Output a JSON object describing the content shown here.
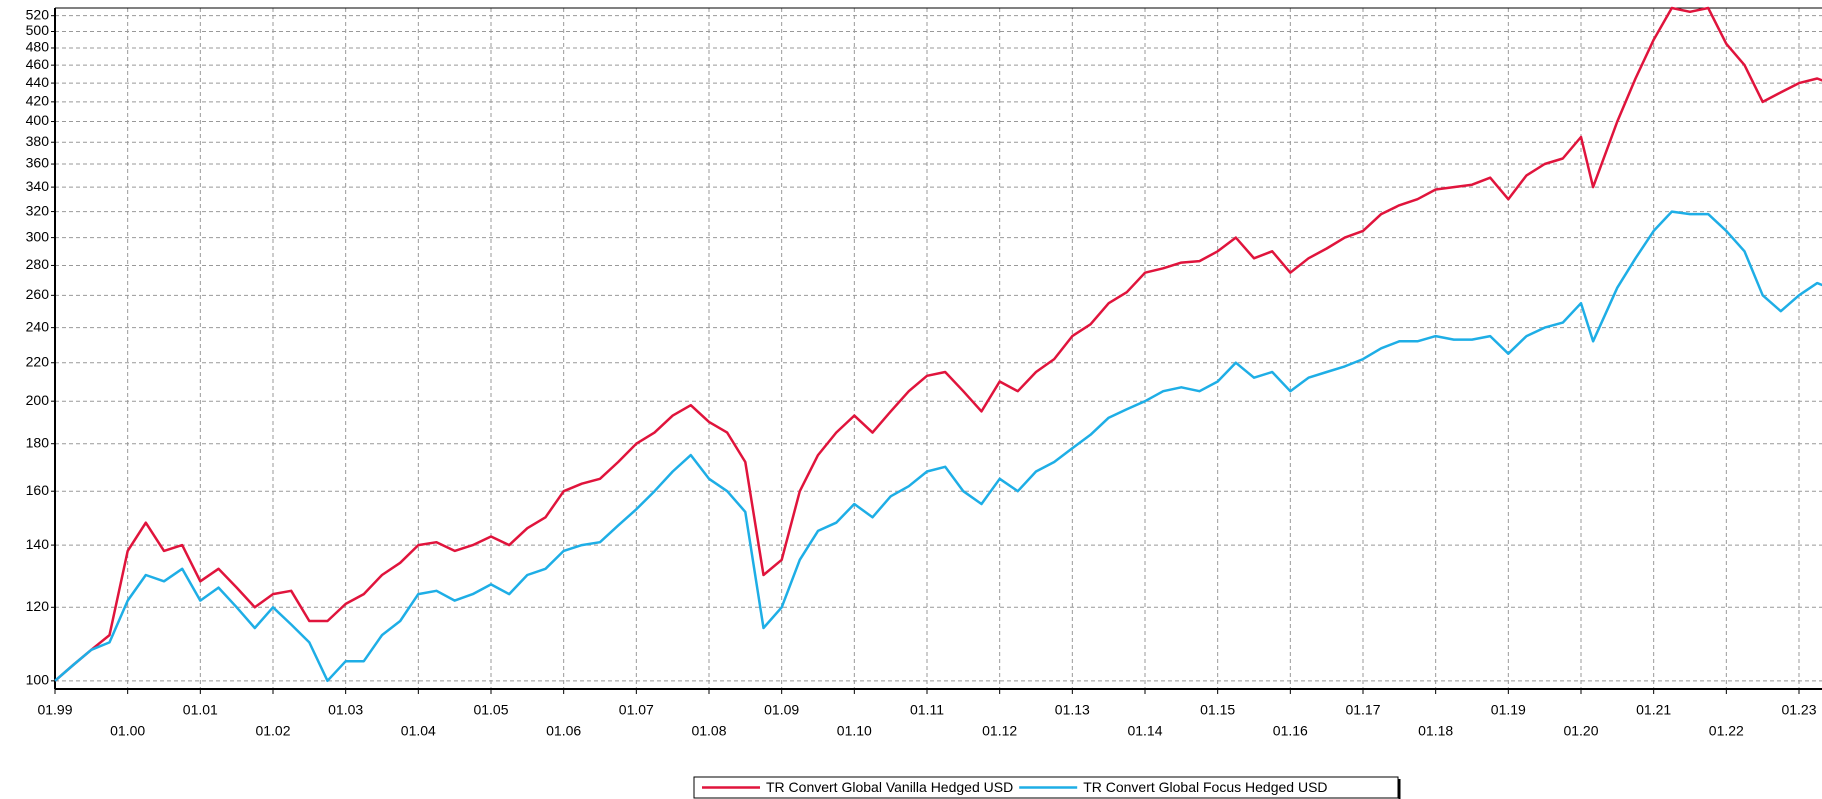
{
  "chart_data": {
    "type": "line",
    "log_scale": true,
    "grid": true,
    "legend": "bottom",
    "x": [
      "1999-01",
      "1999-04",
      "1999-07",
      "1999-10",
      "2000-01",
      "2000-04",
      "2000-07",
      "2000-10",
      "2001-01",
      "2001-04",
      "2001-07",
      "2001-10",
      "2002-01",
      "2002-04",
      "2002-07",
      "2002-10",
      "2003-01",
      "2003-04",
      "2003-07",
      "2003-10",
      "2004-01",
      "2004-04",
      "2004-07",
      "2004-10",
      "2005-01",
      "2005-04",
      "2005-07",
      "2005-10",
      "2006-01",
      "2006-04",
      "2006-07",
      "2006-10",
      "2007-01",
      "2007-04",
      "2007-07",
      "2007-10",
      "2008-01",
      "2008-04",
      "2008-07",
      "2008-10",
      "2009-01",
      "2009-04",
      "2009-07",
      "2009-10",
      "2010-01",
      "2010-04",
      "2010-07",
      "2010-10",
      "2011-01",
      "2011-04",
      "2011-07",
      "2011-10",
      "2012-01",
      "2012-04",
      "2012-07",
      "2012-10",
      "2013-01",
      "2013-04",
      "2013-07",
      "2013-10",
      "2014-01",
      "2014-04",
      "2014-07",
      "2014-10",
      "2015-01",
      "2015-04",
      "2015-07",
      "2015-10",
      "2016-01",
      "2016-04",
      "2016-07",
      "2016-10",
      "2017-01",
      "2017-04",
      "2017-07",
      "2017-10",
      "2018-01",
      "2018-04",
      "2018-07",
      "2018-10",
      "2019-01",
      "2019-04",
      "2019-07",
      "2019-10",
      "2020-01",
      "2020-03",
      "2020-07",
      "2020-10",
      "2021-01",
      "2021-04",
      "2021-07",
      "2021-10",
      "2022-01",
      "2022-04",
      "2022-07",
      "2022-10",
      "2023-01",
      "2023-04",
      "2023-06"
    ],
    "series": [
      {
        "name": "TR Convert Global Vanilla Hedged USD",
        "color": "#e0143c",
        "values": [
          100,
          104,
          108,
          112,
          138,
          148,
          138,
          140,
          128,
          132,
          126,
          120,
          124,
          125,
          116,
          116,
          121,
          124,
          130,
          134,
          140,
          141,
          138,
          140,
          143,
          140,
          146,
          150,
          160,
          163,
          165,
          172,
          180,
          185,
          193,
          198,
          190,
          185,
          172,
          130,
          135,
          160,
          175,
          185,
          193,
          185,
          195,
          205,
          213,
          215,
          205,
          195,
          210,
          205,
          215,
          222,
          235,
          242,
          255,
          262,
          275,
          278,
          282,
          283,
          290,
          300,
          285,
          290,
          275,
          285,
          292,
          300,
          305,
          318,
          325,
          330,
          338,
          340,
          342,
          348,
          330,
          350,
          360,
          365,
          385,
          340,
          400,
          445,
          490,
          530,
          525,
          530,
          485,
          460,
          420,
          430,
          440,
          445,
          440
        ]
      },
      {
        "name": "TR Convert Global Focus Hedged USD",
        "color": "#1eaee6",
        "values": [
          100,
          104,
          108,
          110,
          122,
          130,
          128,
          132,
          122,
          126,
          120,
          114,
          120,
          115,
          110,
          100,
          105,
          105,
          112,
          116,
          124,
          125,
          122,
          124,
          127,
          124,
          130,
          132,
          138,
          140,
          141,
          147,
          153,
          160,
          168,
          175,
          165,
          160,
          152,
          114,
          120,
          135,
          145,
          148,
          155,
          150,
          158,
          162,
          168,
          170,
          160,
          155,
          165,
          160,
          168,
          172,
          178,
          184,
          192,
          196,
          200,
          205,
          207,
          205,
          210,
          220,
          212,
          215,
          205,
          212,
          215,
          218,
          222,
          228,
          232,
          232,
          235,
          233,
          233,
          235,
          225,
          235,
          240,
          243,
          255,
          232,
          265,
          285,
          305,
          320,
          318,
          318,
          305,
          290,
          260,
          250,
          260,
          268,
          265
        ]
      }
    ],
    "ylim": [
      98,
      530
    ],
    "yticks": [
      100,
      120,
      140,
      160,
      180,
      200,
      220,
      240,
      260,
      280,
      300,
      320,
      340,
      360,
      380,
      400,
      420,
      440,
      460,
      480,
      500,
      520
    ],
    "xlim": [
      "1999-01",
      "2023-06"
    ],
    "xticks": [
      {
        "value": "1999-01",
        "label": "01.99"
      },
      {
        "value": "2000-01",
        "label": "01.00"
      },
      {
        "value": "2001-01",
        "label": "01.01"
      },
      {
        "value": "2002-01",
        "label": "01.02"
      },
      {
        "value": "2003-01",
        "label": "01.03"
      },
      {
        "value": "2004-01",
        "label": "01.04"
      },
      {
        "value": "2005-01",
        "label": "01.05"
      },
      {
        "value": "2006-01",
        "label": "01.06"
      },
      {
        "value": "2007-01",
        "label": "01.07"
      },
      {
        "value": "2008-01",
        "label": "01.08"
      },
      {
        "value": "2009-01",
        "label": "01.09"
      },
      {
        "value": "2010-01",
        "label": "01.10"
      },
      {
        "value": "2011-01",
        "label": "01.11"
      },
      {
        "value": "2012-01",
        "label": "01.12"
      },
      {
        "value": "2013-01",
        "label": "01.13"
      },
      {
        "value": "2014-01",
        "label": "01.14"
      },
      {
        "value": "2015-01",
        "label": "01.15"
      },
      {
        "value": "2016-01",
        "label": "01.16"
      },
      {
        "value": "2017-01",
        "label": "01.17"
      },
      {
        "value": "2018-01",
        "label": "01.18"
      },
      {
        "value": "2019-01",
        "label": "01.19"
      },
      {
        "value": "2020-01",
        "label": "01.20"
      },
      {
        "value": "2021-01",
        "label": "01.21"
      },
      {
        "value": "2022-01",
        "label": "01.22"
      },
      {
        "value": "2023-01",
        "label": "01.23"
      }
    ]
  }
}
